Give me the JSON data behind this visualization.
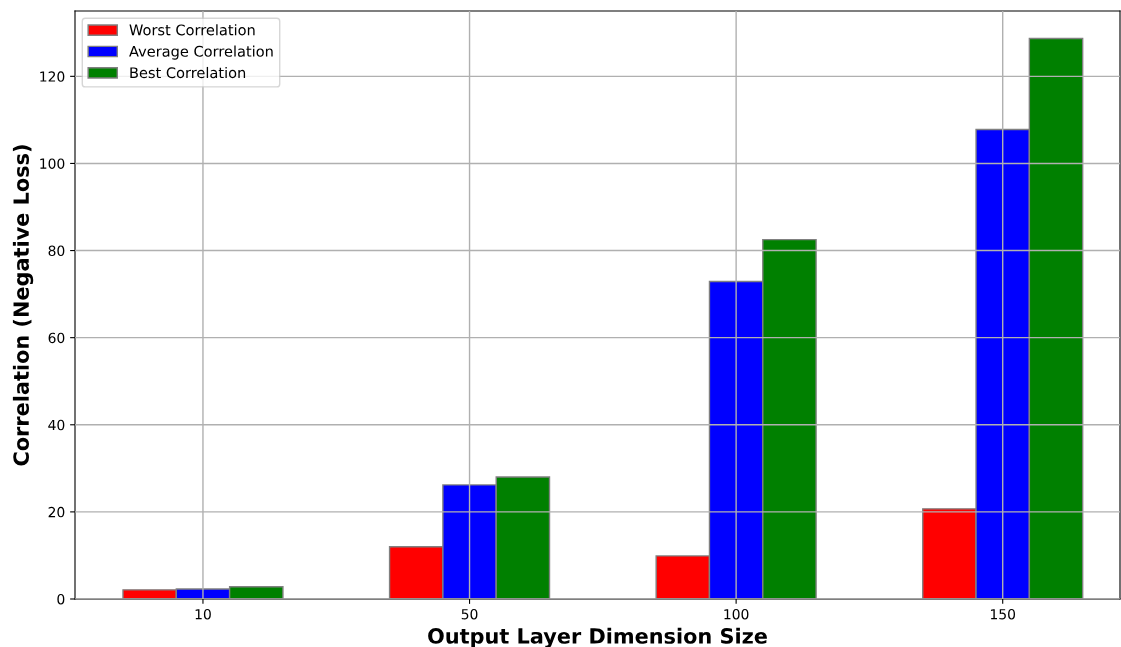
{
  "chart_data": {
    "type": "bar",
    "xlabel": "Output Layer Dimension Size",
    "ylabel": "Correlation (Negative Loss)",
    "categories": [
      "10",
      "50",
      "100",
      "150"
    ],
    "series": [
      {
        "name": "Worst Correlation",
        "color": "#ff0000",
        "values": [
          2.1,
          12.0,
          9.9,
          20.7
        ]
      },
      {
        "name": "Average Correlation",
        "color": "#0000ff",
        "values": [
          2.3,
          26.2,
          72.9,
          107.8
        ]
      },
      {
        "name": "Best Correlation",
        "color": "#008000",
        "values": [
          2.8,
          28.0,
          82.5,
          128.7
        ]
      }
    ],
    "ylim": [
      0,
      135
    ],
    "yticks": [
      0,
      20,
      40,
      60,
      80,
      100,
      120
    ],
    "grid": true,
    "legend": "top left"
  }
}
